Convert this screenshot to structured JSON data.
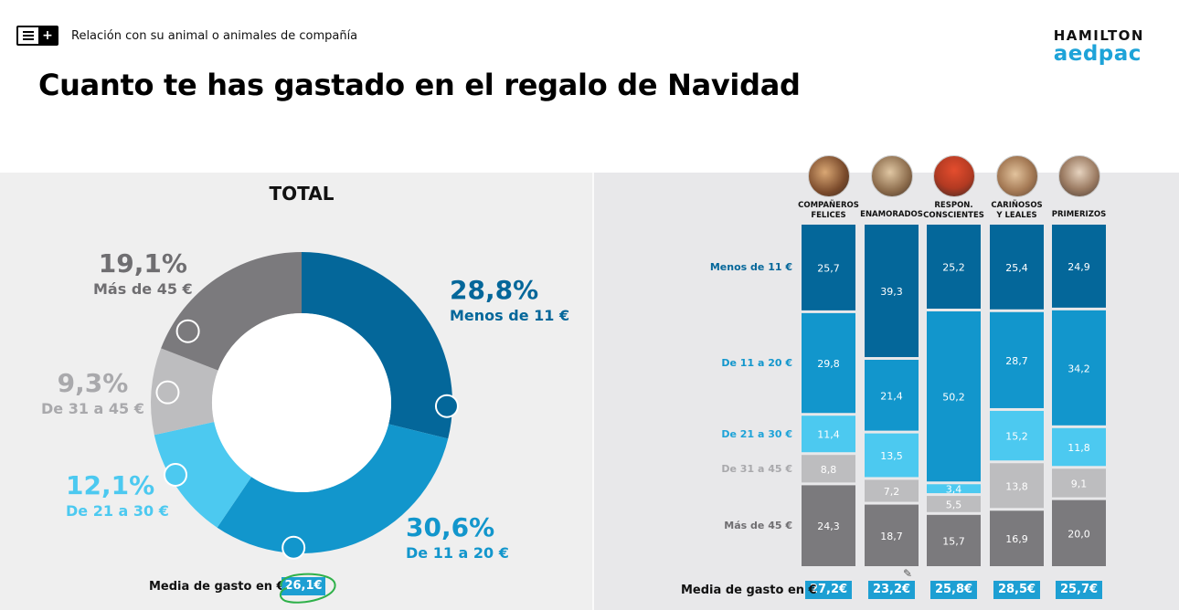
{
  "header": {
    "section_label": "Relación con su animal o animales de compañía",
    "brand_top": "HAMILTON",
    "brand_bottom": "aedpac",
    "title": "Cuanto te has gastado en el regalo de Navidad"
  },
  "colors": {
    "menos_11": "#04679a",
    "de_11_20": "#1296cc",
    "de_21_30": "#4cc9f0",
    "de_31_45": "#bdbdbf",
    "mas_45": "#7b7a7d",
    "badge": "#1d9fd3"
  },
  "icons": {
    "menu": "menu-plus-icon",
    "pencil": "pencil-icon"
  },
  "chart_data": [
    {
      "type": "pie",
      "title": "TOTAL",
      "variant": "donut",
      "categories": [
        "Menos de 11 €",
        "De 11 a 20 €",
        "De 21 a 30 €",
        "De 31 a 45 €",
        "Más de 45 €"
      ],
      "values": [
        28.8,
        30.6,
        12.1,
        9.3,
        19.1
      ],
      "value_labels": [
        "28,8%",
        "30,6%",
        "12,1%",
        "9,3%",
        "19,1%"
      ],
      "average_label": "Media de gasto en €",
      "average_value": "26,1€"
    },
    {
      "type": "bar",
      "stacked": true,
      "normalized": true,
      "categories": [
        "COMPAÑEROS FELICES",
        "ENAMORADOS",
        "RESPON. CONSCIENTES",
        "CARIÑOSOS Y LEALES",
        "PRIMERIZOS"
      ],
      "series": [
        {
          "name": "Menos de 11 €",
          "values": [
            25.7,
            39.3,
            25.2,
            25.4,
            24.9
          ],
          "labels": [
            "25,7",
            "39,3",
            "25,2",
            "25,4",
            "24,9"
          ]
        },
        {
          "name": "De 11 a 20 €",
          "values": [
            29.8,
            21.4,
            50.2,
            28.7,
            34.2
          ],
          "labels": [
            "29,8",
            "21,4",
            "50,2",
            "28,7",
            "34,2"
          ]
        },
        {
          "name": "De 21 a 30 €",
          "values": [
            11.4,
            13.5,
            3.4,
            15.2,
            11.8
          ],
          "labels": [
            "11,4",
            "13,5",
            "3,4",
            "15,2",
            "11,8"
          ]
        },
        {
          "name": "De 31 a 45 €",
          "values": [
            8.8,
            7.2,
            5.5,
            13.8,
            9.1
          ],
          "labels": [
            "8,8",
            "7,2",
            "5,5",
            "13,8",
            "9,1"
          ]
        },
        {
          "name": "Más de 45 €",
          "values": [
            24.3,
            18.7,
            15.7,
            16.9,
            20.0
          ],
          "labels": [
            "24,3",
            "18,7",
            "15,7",
            "16,9",
            "20,0"
          ]
        }
      ],
      "average_label": "Media de gasto en €",
      "averages": [
        "27,2€",
        "23,2€",
        "25,8€",
        "28,5€",
        "25,7€"
      ]
    }
  ]
}
